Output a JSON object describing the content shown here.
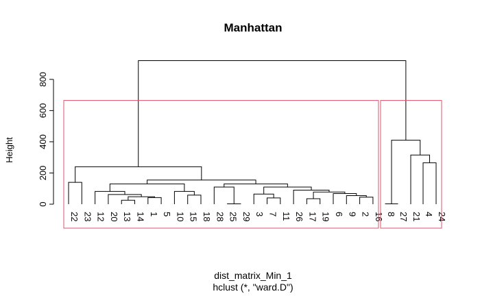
{
  "chart_data": {
    "type": "dendrogram",
    "title": "Manhattan",
    "ylabel": "Height",
    "xlabel": "dist_matrix_Min_1",
    "sublabel": "hclust (*, \"ward.D\")",
    "ylim": [
      0,
      920
    ],
    "yticks": [
      0,
      200,
      400,
      600,
      800
    ],
    "cluster_box_color": "#df536b",
    "leaf_order": [
      "22",
      "23",
      "12",
      "20",
      "13",
      "14",
      "1",
      "5",
      "10",
      "15",
      "18",
      "28",
      "25",
      "29",
      "3",
      "7",
      "11",
      "26",
      "17",
      "19",
      "6",
      "9",
      "2",
      "16",
      "8",
      "27",
      "21",
      "4",
      "24"
    ],
    "merges": [
      {
        "id": "m1",
        "left": "25",
        "right": "29",
        "height": 2
      },
      {
        "id": "m2",
        "left": "8",
        "right": "27",
        "height": 2
      },
      {
        "id": "m3",
        "left": "13",
        "right": "14",
        "height": 25
      },
      {
        "id": "m4",
        "left": "2",
        "right": "16",
        "height": 45
      },
      {
        "id": "m5",
        "left": "1",
        "right": "5",
        "height": 42
      },
      {
        "id": "m6",
        "left": "m3",
        "right": "m5",
        "height": 48
      },
      {
        "id": "m7",
        "left": "7",
        "right": "11",
        "height": 40
      },
      {
        "id": "m8",
        "left": "19",
        "right": "17",
        "height": 35,
        "left_first": false
      },
      {
        "id": "m9",
        "left": "9",
        "right": "m4",
        "height": 55
      },
      {
        "id": "m10",
        "left": "15",
        "right": "18",
        "height": 58
      },
      {
        "id": "m11",
        "left": "m6",
        "right": "m12_placeholder",
        "height": 0,
        "skip": true
      },
      {
        "id": "m12",
        "left": "20",
        "right": "m6",
        "height": 62
      },
      {
        "id": "m13",
        "left": "3",
        "right": "m7",
        "height": 65
      },
      {
        "id": "m14",
        "left": "6",
        "right": "m9",
        "height": 68
      },
      {
        "id": "m15",
        "left": "10",
        "right": "m10",
        "height": 82
      },
      {
        "id": "m16",
        "left": "12",
        "right": "m12",
        "height": 82
      },
      {
        "id": "m17",
        "left": "m8",
        "right": "m14",
        "height": 78
      },
      {
        "id": "m18",
        "left": "26",
        "right": "m17",
        "height": 90
      },
      {
        "id": "m19",
        "left": "m13",
        "right": "m18",
        "height": 110
      },
      {
        "id": "m20",
        "left": "28",
        "right": "m1",
        "height": 110
      },
      {
        "id": "m21",
        "left": "m20",
        "right": "m19",
        "height": 130
      },
      {
        "id": "m22",
        "left": "22",
        "right": "23",
        "height": 140
      },
      {
        "id": "m23",
        "left": "m16",
        "right": "m15",
        "height": 130
      },
      {
        "id": "m24",
        "left": "m23",
        "right": "m21",
        "height": 155
      },
      {
        "id": "m25",
        "left": "m22",
        "right": "m24",
        "height": 240
      },
      {
        "id": "m26",
        "left": "4",
        "right": "24",
        "height": 265
      },
      {
        "id": "m27",
        "left": "21",
        "right": "m26",
        "height": 315
      },
      {
        "id": "m28",
        "left": "m2",
        "right": "m27",
        "height": 410
      },
      {
        "id": "m29",
        "left": "m25",
        "right": "m28",
        "height": 920
      }
    ],
    "cluster_boxes": [
      {
        "first_leaf": "22",
        "last_leaf": "16",
        "top": 665
      },
      {
        "first_leaf": "8",
        "last_leaf": "24",
        "top": 665
      }
    ]
  }
}
